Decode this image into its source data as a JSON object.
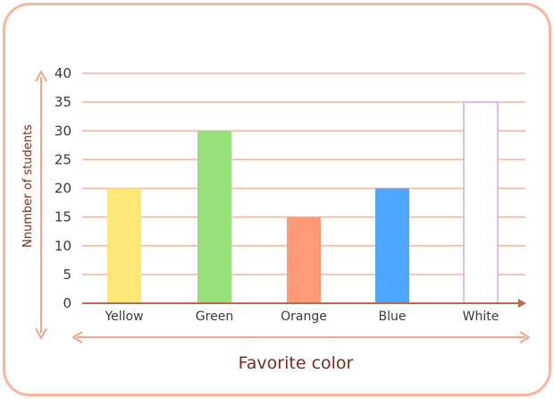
{
  "chart_data": {
    "type": "bar",
    "categories": [
      "Yellow",
      "Green",
      "Orange",
      "Blue",
      "White"
    ],
    "values": [
      20,
      30,
      15,
      20,
      35
    ],
    "bar_colors": [
      "#fde776",
      "#98e17a",
      "#fe9a76",
      "#4da6ff",
      "#ffffff"
    ],
    "bar_stroke": [
      "none",
      "none",
      "none",
      "none",
      "#d9a6e6"
    ],
    "xlabel": "Favorite color",
    "ylabel": "Nnumber of students",
    "ylim": [
      0,
      40
    ],
    "yticks": [
      0,
      5,
      10,
      15,
      20,
      25,
      30,
      35,
      40
    ],
    "grid": true,
    "grid_color": "#f5b5a0",
    "axis_color": "#b86a4e",
    "arrow_color": "#f3a48c"
  }
}
